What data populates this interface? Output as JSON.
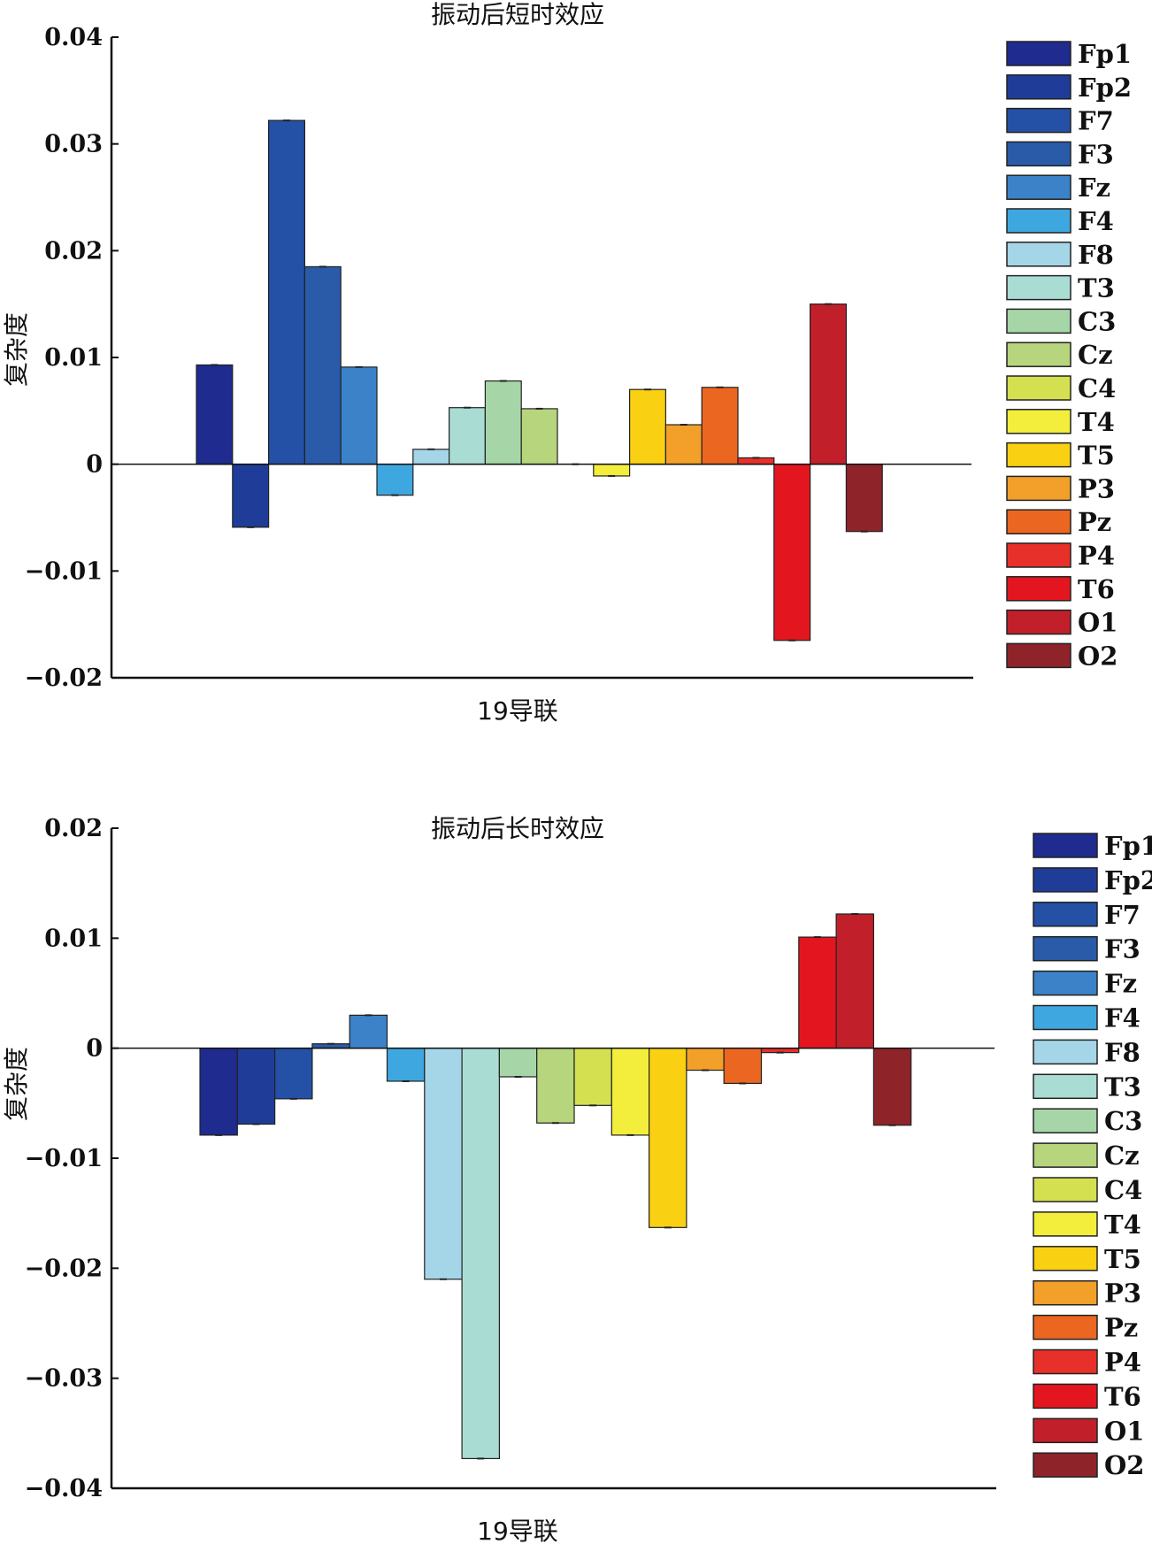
{
  "colors": {
    "Fp1": "#1f2b8e",
    "Fp2": "#1f3d98",
    "F7": "#2450a6",
    "F3": "#2a5ba8",
    "Fz": "#3b82c8",
    "F4": "#3fa7df",
    "F8": "#a4d6e8",
    "T3": "#a9dcd2",
    "C3": "#a6d6a8",
    "Cz": "#b6d57c",
    "C4": "#d4e050",
    "T4": "#f3ee3c",
    "T5": "#f9d012",
    "P3": "#f2a02a",
    "Pz": "#ea6621",
    "P4": "#e8302a",
    "T6": "#e3161f",
    "O1": "#c1202a",
    "O2": "#8e232a"
  },
  "chart_data": [
    {
      "type": "bar",
      "title": "振动后短时效应",
      "xlabel": "19导联",
      "ylabel": "复杂度",
      "ylim": [
        -0.02,
        0.04
      ],
      "yticks": [
        "0.04",
        "0.03",
        "0.02",
        "0.01",
        "0",
        "−0.01",
        "−0.02"
      ],
      "legend_position": "right",
      "categories": [
        "Fp1",
        "Fp2",
        "F7",
        "F3",
        "Fz",
        "F4",
        "F8",
        "T3",
        "C3",
        "Cz",
        "C4",
        "T4",
        "T5",
        "P3",
        "Pz",
        "P4",
        "T6",
        "O1",
        "O2"
      ],
      "values": [
        0.0093,
        -0.0059,
        0.0322,
        0.0185,
        0.0091,
        -0.0029,
        0.0014,
        0.0053,
        0.0078,
        0.0052,
        0.0,
        -0.0011,
        0.007,
        0.0037,
        0.0072,
        0.0006,
        -0.0165,
        0.015,
        -0.0063
      ]
    },
    {
      "type": "bar",
      "title": "振动后长时效应",
      "xlabel": "19导联",
      "ylabel": "复杂度",
      "ylim": [
        -0.04,
        0.02
      ],
      "yticks": [
        "0.02",
        "0.01",
        "0",
        "−0.01",
        "−0.02",
        "−0.03",
        "−0.04"
      ],
      "legend_position": "right",
      "categories": [
        "Fp1",
        "Fp2",
        "F7",
        "F3",
        "Fz",
        "F4",
        "F8",
        "T3",
        "C3",
        "Cz",
        "C4",
        "T4",
        "T5",
        "P3",
        "Pz",
        "P4",
        "T6",
        "O1",
        "O2"
      ],
      "values": [
        -0.0079,
        -0.0069,
        -0.0046,
        0.0004,
        0.003,
        -0.003,
        -0.021,
        -0.0373,
        -0.0026,
        -0.0068,
        -0.0052,
        -0.0079,
        -0.0163,
        -0.002,
        -0.0032,
        -0.0004,
        0.0101,
        0.0122,
        -0.007
      ]
    }
  ]
}
